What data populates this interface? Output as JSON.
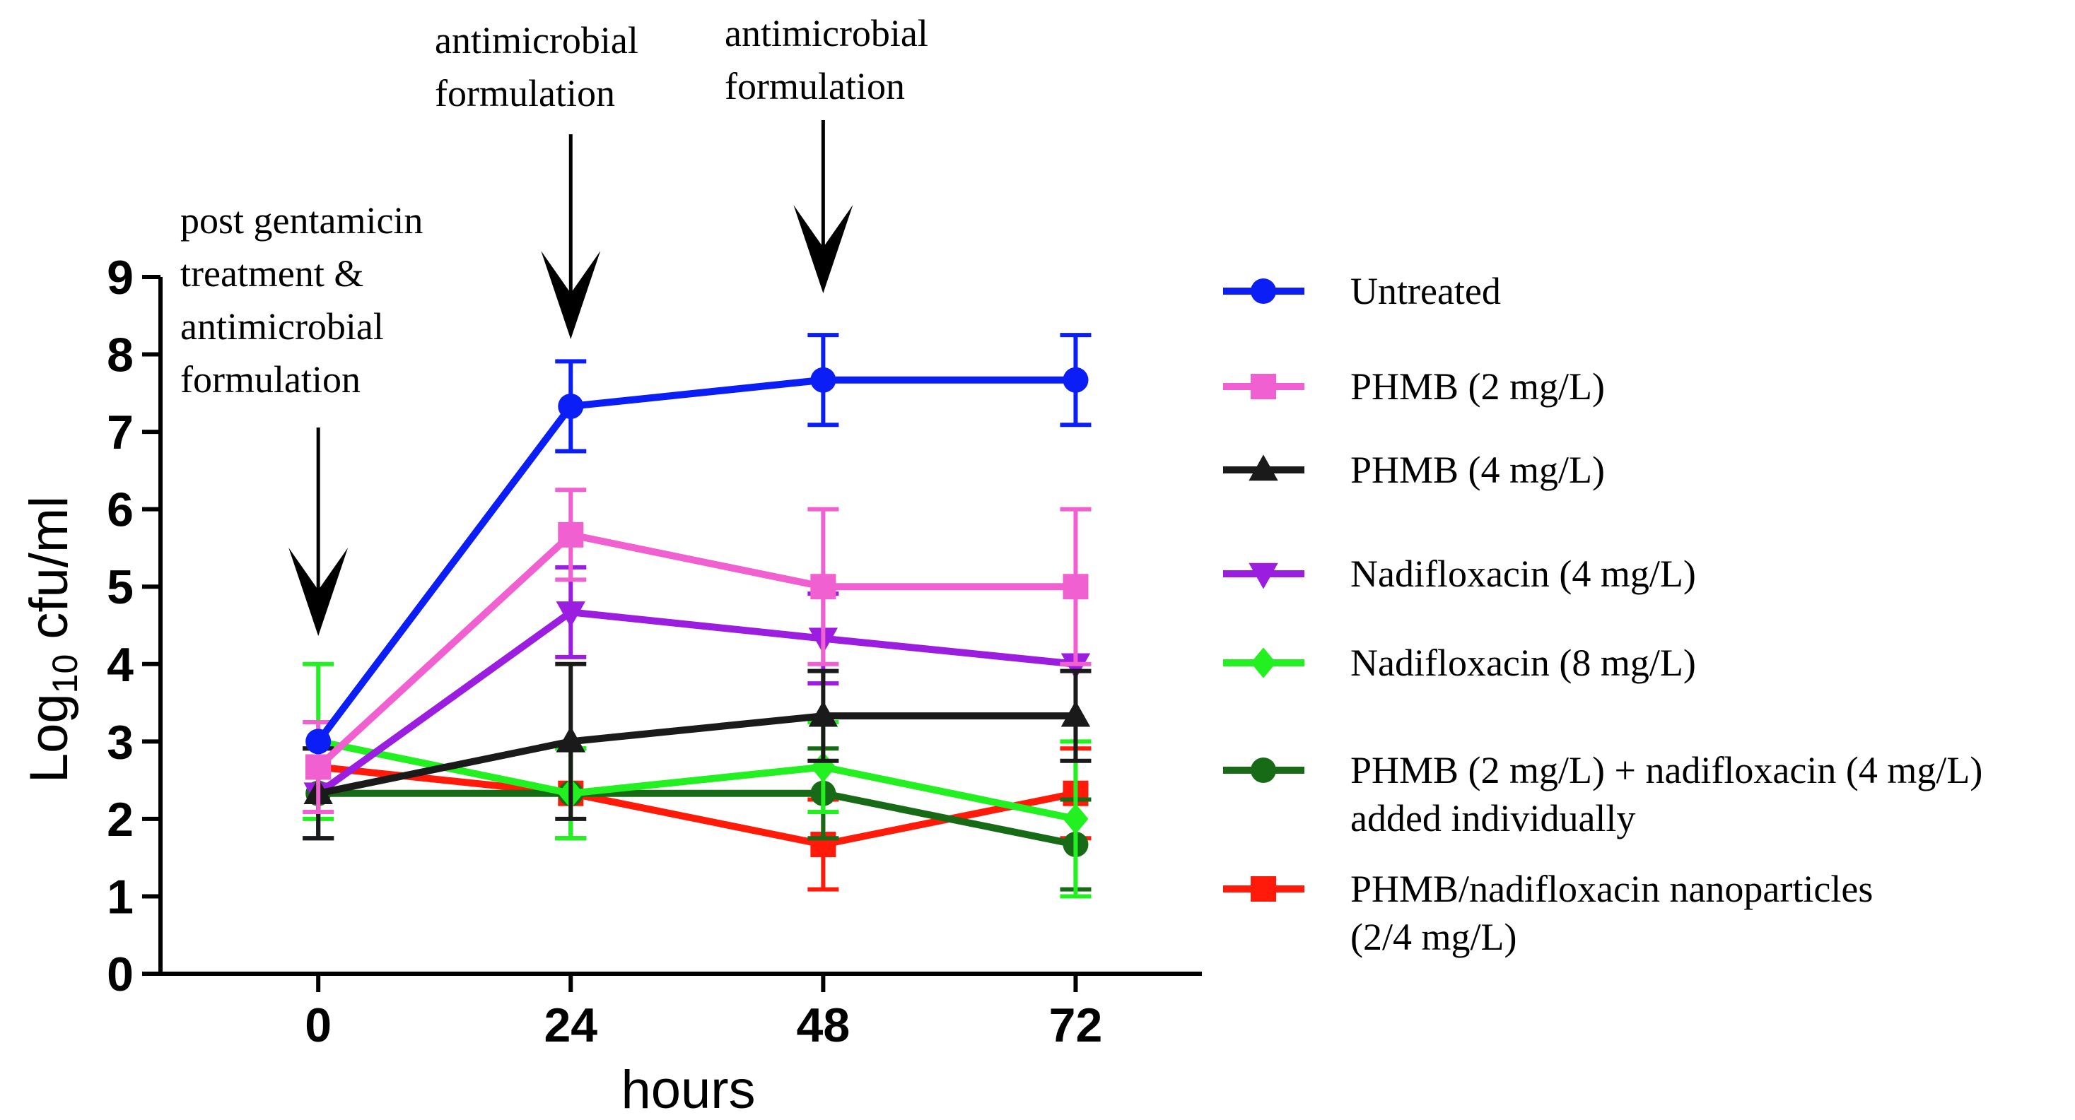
{
  "chart_data": {
    "type": "line",
    "title": "",
    "xlabel": "hours",
    "ylabel_main": "Log",
    "ylabel_sub": "10",
    "ylabel_rest": " cfu/ml",
    "x": [
      0,
      24,
      48,
      72
    ],
    "x_tick_labels": [
      "0",
      "24",
      "48",
      "72"
    ],
    "y_tick_labels": [
      "0",
      "1",
      "2",
      "3",
      "4",
      "5",
      "6",
      "7",
      "8",
      "9"
    ],
    "ylim": [
      0,
      9
    ],
    "xlim": [
      -15,
      84
    ],
    "grid": false,
    "legend_position": "right",
    "series": [
      {
        "name": "Untreated",
        "color": "#0a1ef5",
        "marker": "circle",
        "values": [
          3.0,
          7.33,
          7.67,
          7.67
        ],
        "errors": [
          0.0,
          0.58,
          0.58,
          0.58
        ]
      },
      {
        "name": "PHMB (2 mg/L)",
        "color": "#f060d0",
        "marker": "square",
        "values": [
          2.67,
          5.67,
          5.0,
          5.0
        ],
        "errors": [
          0.58,
          0.58,
          1.0,
          1.0
        ]
      },
      {
        "name": "PHMB (4 mg/L)",
        "color": "#1a1a1a",
        "marker": "triangle-up",
        "values": [
          2.33,
          3.0,
          3.33,
          3.33
        ],
        "errors": [
          0.58,
          1.0,
          0.58,
          0.58
        ]
      },
      {
        "name": "Nadifloxacin (4 mg/L)",
        "color": "#9b1de0",
        "marker": "triangle-down",
        "values": [
          2.33,
          4.67,
          4.33,
          4.0
        ],
        "errors": [
          0.58,
          0.58,
          0.58,
          0.0
        ]
      },
      {
        "name": "Nadifloxacin (8 mg/L)",
        "color": "#22f020",
        "marker": "diamond",
        "values": [
          3.0,
          2.33,
          2.67,
          2.0
        ],
        "errors": [
          1.0,
          0.58,
          0.58,
          1.0
        ]
      },
      {
        "name": "PHMB (2 mg/L) + nadifloxacin (4 mg/L)",
        "name_line2": "added individually",
        "color": "#176b17",
        "marker": "circle",
        "values": [
          2.33,
          2.33,
          2.33,
          1.67
        ],
        "errors": [
          0.58,
          0.58,
          0.58,
          0.58
        ]
      },
      {
        "name": "PHMB/nadifloxacin nanoparticles",
        "name_line2": "(2/4 mg/L)",
        "color": "#ff1a0a",
        "marker": "square",
        "values": [
          2.67,
          2.33,
          1.67,
          2.33
        ],
        "errors": [
          0.0,
          0.0,
          0.58,
          0.58
        ]
      }
    ],
    "annotations": [
      {
        "x": 0,
        "lines": [
          "post gentamicin",
          "treatment &",
          "antimicrobial",
          "formulation"
        ]
      },
      {
        "x": 24,
        "lines": [
          "antimicrobial",
          "formulation"
        ]
      },
      {
        "x": 48,
        "lines": [
          "antimicrobial",
          "formulation"
        ]
      }
    ]
  }
}
